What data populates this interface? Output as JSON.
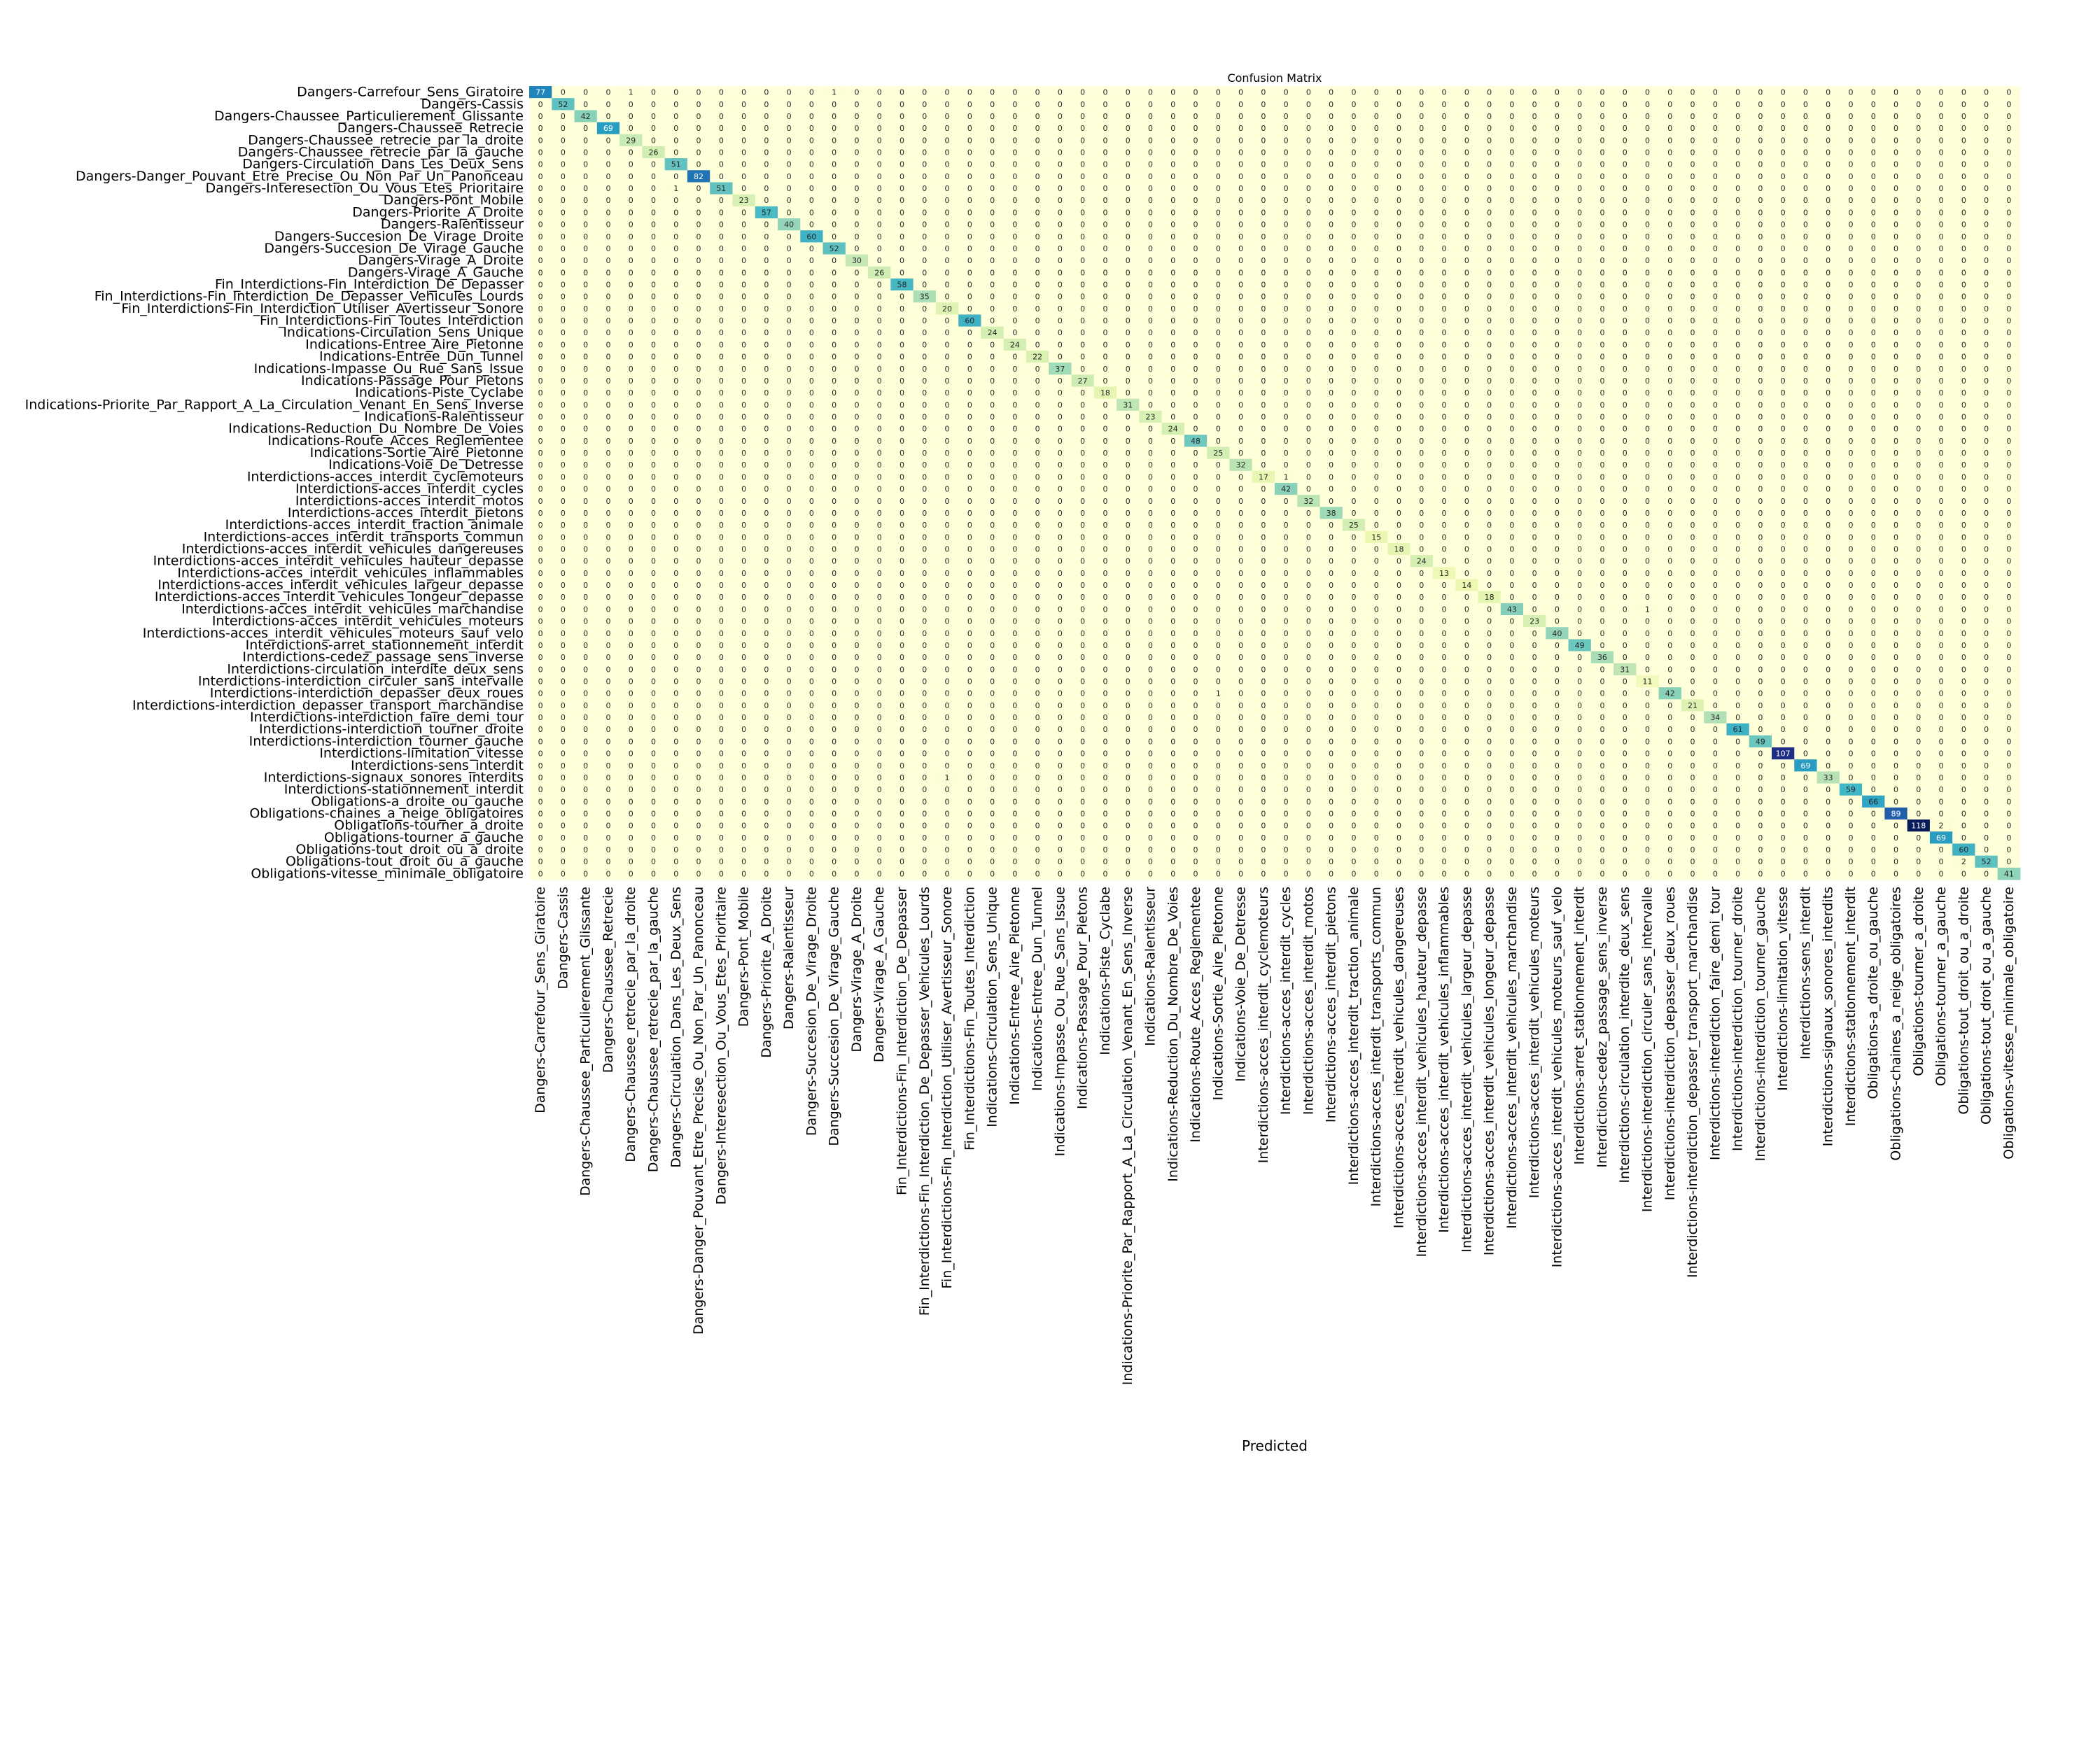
{
  "chart_data": {
    "type": "heatmap",
    "title": "Confusion Matrix",
    "xlabel": "Predicted",
    "ylabel": "",
    "colormap": [
      "#ffffd9",
      "#edf8b1",
      "#c7e9b4",
      "#7fcdbb",
      "#41b6c4",
      "#1d91c0",
      "#225ea8",
      "#253494",
      "#081d58"
    ],
    "vmax": 118,
    "labels": [
      "Dangers-Carrefour_Sens_Giratoire",
      "Dangers-Cassis",
      "Dangers-Chaussee_Particulierement_Glissante",
      "Dangers-Chaussee_Retrecie",
      "Dangers-Chaussee_retrecie_par_la_droite",
      "Dangers-Chaussee_retrecie_par_la_gauche",
      "Dangers-Circulation_Dans_Les_Deux_Sens",
      "Dangers-Danger_Pouvant_Etre_Precise_Ou_Non_Par_Un_Panonceau",
      "Dangers-Interesection_Ou_Vous_Etes_Prioritaire",
      "Dangers-Pont_Mobile",
      "Dangers-Priorite_A_Droite",
      "Dangers-Ralentisseur",
      "Dangers-Succesion_De_Virage_Droite",
      "Dangers-Succesion_De_Virage_Gauche",
      "Dangers-Virage_A_Droite",
      "Dangers-Virage_A_Gauche",
      "Fin_Interdictions-Fin_Interdiction_De_Depasser",
      "Fin_Interdictions-Fin_Interdiction_De_Depasser_Vehicules_Lourds",
      "Fin_Interdictions-Fin_Interdiction_Utiliser_Avertisseur_Sonore",
      "Fin_Interdictions-Fin_Toutes_Interdiction",
      "Indications-Circulation_Sens_Unique",
      "Indications-Entree_Aire_Pietonne",
      "Indications-Entree_Dun_Tunnel",
      "Indications-Impasse_Ou_Rue_Sans_Issue",
      "Indications-Passage_Pour_Pietons",
      "Indications-Piste_Cyclabe",
      "Indications-Priorite_Par_Rapport_A_La_Circulation_Venant_En_Sens_Inverse",
      "Indications-Ralentisseur",
      "Indications-Reduction_Du_Nombre_De_Voies",
      "Indications-Route_Acces_Reglementee",
      "Indications-Sortie_Aire_Pietonne",
      "Indications-Voie_De_Detresse",
      "Interdictions-acces_interdit_cyclemoteurs",
      "Interdictions-acces_interdit_cycles",
      "Interdictions-acces_interdit_motos",
      "Interdictions-acces_interdit_pietons",
      "Interdictions-acces_interdit_traction_animale",
      "Interdictions-acces_interdit_transports_commun",
      "Interdictions-acces_interdit_vehicules_dangereuses",
      "Interdictions-acces_interdit_vehicules_hauteur_depasse",
      "Interdictions-acces_interdit_vehicules_inflammables",
      "Interdictions-acces_interdit_vehicules_largeur_depasse",
      "Interdictions-acces_interdit_vehicules_longeur_depasse",
      "Interdictions-acces_interdit_vehicules_marchandise",
      "Interdictions-acces_interdit_vehicules_moteurs",
      "Interdictions-acces_interdit_vehicules_moteurs_sauf_velo",
      "Interdictions-arret_stationnement_interdit",
      "Interdictions-cedez_passage_sens_inverse",
      "Interdictions-circulation_interdite_deux_sens",
      "Interdictions-interdiction_circuler_sans_intervalle",
      "Interdictions-interdiction_depasser_deux_roues",
      "Interdictions-interdiction_depasser_transport_marchandise",
      "Interdictions-interdiction_faire_demi_tour",
      "Interdictions-interdiction_tourner_droite",
      "Interdictions-interdiction_tourner_gauche",
      "Interdictions-limitation_vitesse",
      "Interdictions-sens_interdit",
      "Interdictions-signaux_sonores_interdits",
      "Interdictions-stationnement_interdit",
      "Obligations-a_droite_ou_gauche",
      "Obligations-chaines_a_neige_obligatoires",
      "Obligations-tourner_a_droite",
      "Obligations-tourner_a_gauche",
      "Obligations-tout_droit_ou_a_droite",
      "Obligations-tout_droit_ou_a_gauche",
      "Obligations-vitesse_minimale_obligatoire"
    ],
    "diagonal": [
      77,
      52,
      42,
      69,
      29,
      26,
      51,
      82,
      51,
      23,
      57,
      40,
      60,
      52,
      30,
      26,
      58,
      35,
      20,
      60,
      24,
      24,
      22,
      37,
      27,
      18,
      31,
      23,
      24,
      48,
      25,
      32,
      17,
      42,
      32,
      38,
      25,
      15,
      18,
      24,
      13,
      14,
      18,
      43,
      23,
      40,
      49,
      36,
      31,
      11,
      42,
      21,
      34,
      61,
      49,
      107,
      69,
      33,
      59,
      66,
      89,
      118,
      69,
      60,
      52,
      41
    ],
    "off_diagonal": [
      [
        0,
        4,
        1
      ],
      [
        0,
        13,
        1
      ],
      [
        8,
        6,
        1
      ],
      [
        32,
        33,
        1
      ],
      [
        43,
        49,
        1
      ],
      [
        50,
        30,
        1
      ],
      [
        57,
        18,
        1
      ],
      [
        61,
        62,
        2
      ],
      [
        64,
        63,
        2
      ]
    ]
  }
}
